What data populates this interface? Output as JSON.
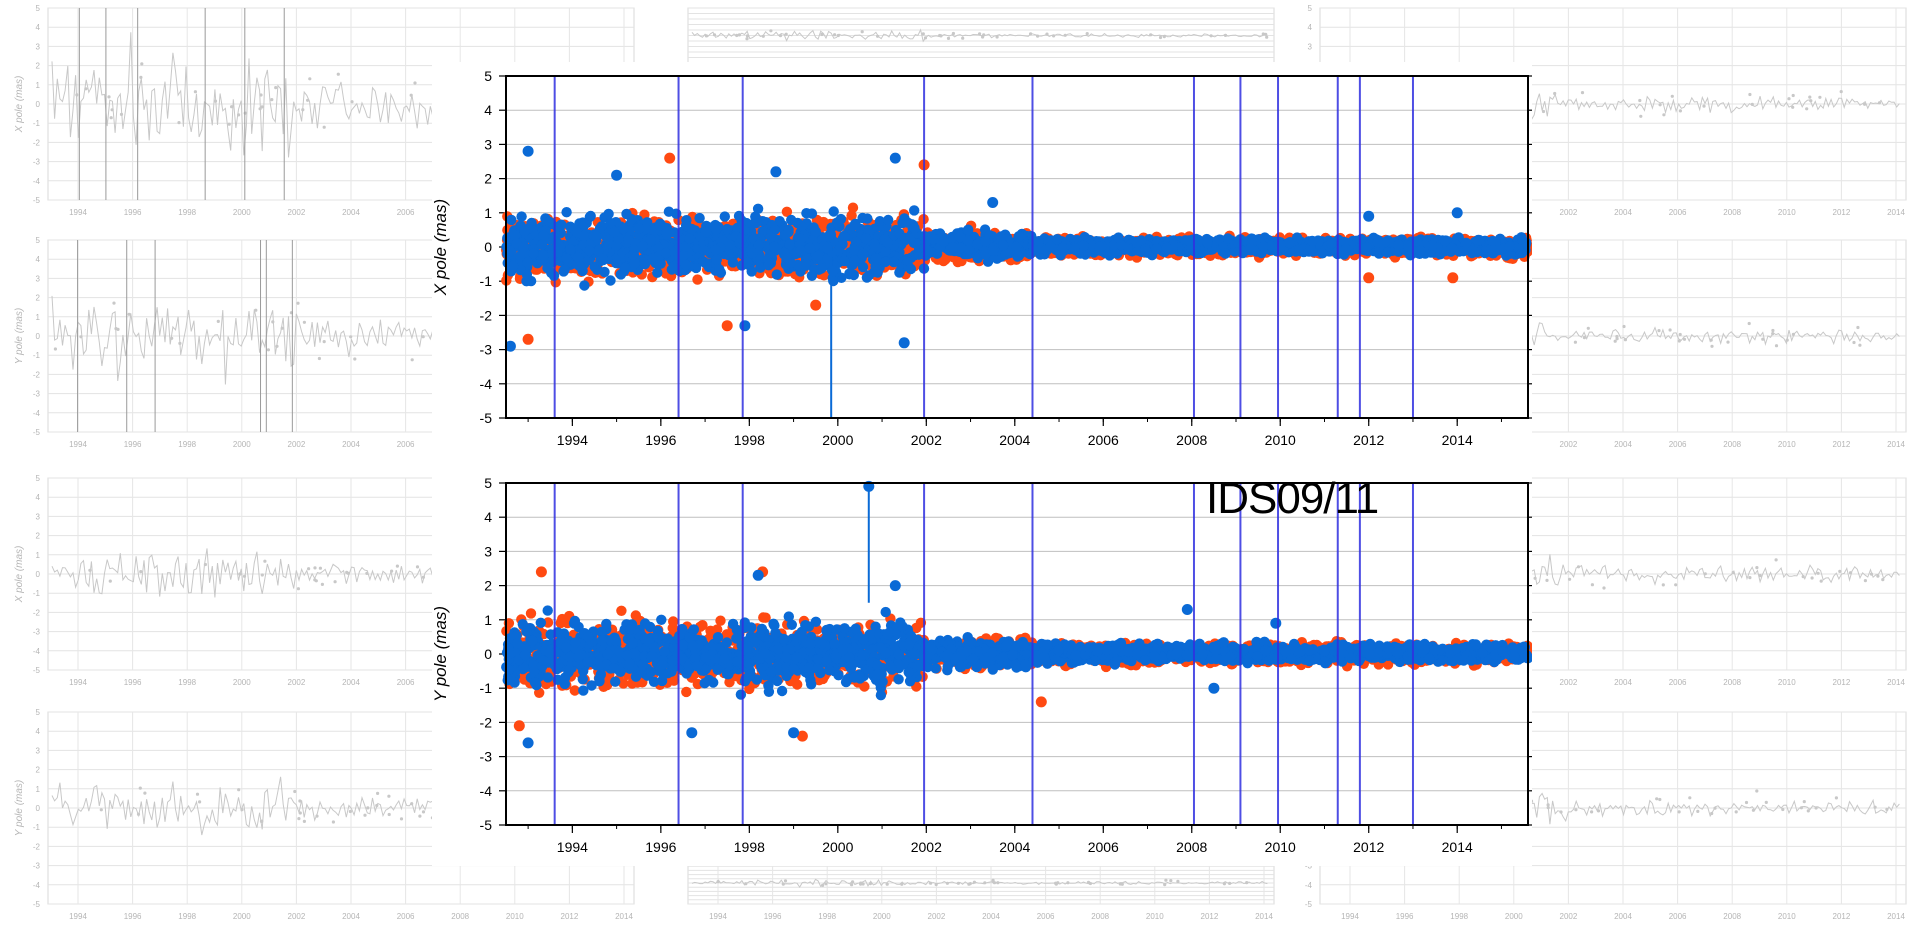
{
  "overlay_label": "IDS09/11",
  "colors": {
    "series_red": "#ff4a12",
    "series_blue": "#0a6ad6",
    "discontinuity": "#3030e0",
    "grid": "#bfbfbf",
    "background_gray": "#c8c8c8"
  },
  "chart_data": [
    {
      "type": "scatter",
      "title": "",
      "xlabel": "",
      "ylabel": "X pole (mas)",
      "xlim": [
        1992.5,
        2015.6
      ],
      "ylim": [
        -5,
        5
      ],
      "x_ticks": [
        "1994",
        "1996",
        "1998",
        "2000",
        "2002",
        "2004",
        "2006",
        "2008",
        "2010",
        "2012",
        "2014"
      ],
      "y_ticks": [
        "5",
        "4",
        "3",
        "2",
        "1",
        "0",
        "-1",
        "-2",
        "-3",
        "-4",
        "-5"
      ],
      "grid": true,
      "discontinuities": [
        1993.6,
        1996.4,
        1997.85,
        2001.95,
        2004.4,
        2008.05,
        2009.1,
        2009.95,
        2011.3,
        2011.8,
        2013.0
      ],
      "spike_lines": [
        {
          "x": 1999.85,
          "y_from": 0,
          "y_to": -5
        }
      ],
      "series": [
        {
          "color": "red",
          "envelope": [
            {
              "start": 1992.5,
              "end": 2001.95,
              "spread": 1.2
            },
            {
              "start": 2001.95,
              "end": 2004.4,
              "spread": 0.6
            },
            {
              "start": 2004.4,
              "end": 2015.6,
              "spread": 0.35
            }
          ],
          "outliers": [
            [
              1996.2,
              2.6
            ],
            [
              2001.95,
              2.4
            ],
            [
              1997.5,
              -2.3
            ],
            [
              1993.0,
              -2.7
            ],
            [
              2012.0,
              -0.9
            ],
            [
              2013.9,
              -0.9
            ],
            [
              1999.5,
              -1.7
            ]
          ]
        },
        {
          "color": "blue",
          "envelope": [
            {
              "start": 1992.5,
              "end": 2001.95,
              "spread": 1.2
            },
            {
              "start": 2001.95,
              "end": 2004.4,
              "spread": 0.55
            },
            {
              "start": 2004.4,
              "end": 2015.6,
              "spread": 0.3
            }
          ],
          "outliers": [
            [
              1993.0,
              2.8
            ],
            [
              2001.3,
              2.6
            ],
            [
              1992.6,
              -2.9
            ],
            [
              2001.5,
              -2.8
            ],
            [
              1998.6,
              2.2
            ],
            [
              1997.9,
              -2.3
            ],
            [
              2003.5,
              1.3
            ],
            [
              2014.0,
              1.0
            ],
            [
              2012.0,
              0.9
            ],
            [
              1995.0,
              2.1
            ]
          ]
        }
      ]
    },
    {
      "type": "scatter",
      "title": "",
      "xlabel": "",
      "ylabel": "Y pole (mas)",
      "xlim": [
        1992.5,
        2015.6
      ],
      "ylim": [
        -5,
        5
      ],
      "x_ticks": [
        "1994",
        "1996",
        "1998",
        "2000",
        "2002",
        "2004",
        "2006",
        "2008",
        "2010",
        "2012",
        "2014"
      ],
      "y_ticks": [
        "5",
        "4",
        "3",
        "2",
        "1",
        "0",
        "-1",
        "-2",
        "-3",
        "-4",
        "-5"
      ],
      "grid": true,
      "discontinuities": [
        1993.6,
        1996.4,
        1997.85,
        2001.95,
        2004.4,
        2008.05,
        2009.1,
        2009.95,
        2011.3,
        2011.8,
        2013.0
      ],
      "spike_lines": [
        {
          "x": 2000.7,
          "y_from": 1.5,
          "y_to": 4.9
        }
      ],
      "series": [
        {
          "color": "red",
          "envelope": [
            {
              "start": 1992.5,
              "end": 2001.95,
              "spread": 1.3
            },
            {
              "start": 2001.95,
              "end": 2004.4,
              "spread": 0.6
            },
            {
              "start": 2004.4,
              "end": 2015.6,
              "spread": 0.4
            }
          ],
          "outliers": [
            [
              1993.3,
              2.4
            ],
            [
              1998.3,
              2.4
            ],
            [
              1999.2,
              -2.4
            ],
            [
              1992.8,
              -2.1
            ],
            [
              2004.6,
              -1.4
            ]
          ]
        },
        {
          "color": "blue",
          "envelope": [
            {
              "start": 1992.5,
              "end": 2001.95,
              "spread": 1.25
            },
            {
              "start": 2001.95,
              "end": 2004.4,
              "spread": 0.55
            },
            {
              "start": 2004.4,
              "end": 2015.6,
              "spread": 0.35
            }
          ],
          "outliers": [
            [
              2000.7,
              4.9
            ],
            [
              1993.0,
              -2.6
            ],
            [
              1998.2,
              2.3
            ],
            [
              1999.0,
              -2.3
            ],
            [
              2007.9,
              1.3
            ],
            [
              2008.5,
              -1.0
            ],
            [
              2009.9,
              0.9
            ],
            [
              2001.3,
              2.0
            ],
            [
              1996.7,
              -2.3
            ]
          ]
        }
      ]
    }
  ],
  "background_plots": {
    "x_ticks_short": [
      "1994",
      "1996",
      "1998",
      "2000",
      "2002",
      "2004",
      "2006"
    ],
    "x_ticks_long": [
      "1994",
      "1996",
      "1998",
      "2000",
      "2002",
      "2004",
      "2006",
      "2008",
      "2010",
      "2012",
      "2014"
    ],
    "y_ticks": [
      "5",
      "4",
      "3",
      "2",
      "1",
      "0",
      "-1",
      "-2",
      "-3",
      "-4",
      "-5"
    ],
    "ylabel_x": "X pole (mas)",
    "ylabel_y": "Y pole (mas)"
  }
}
